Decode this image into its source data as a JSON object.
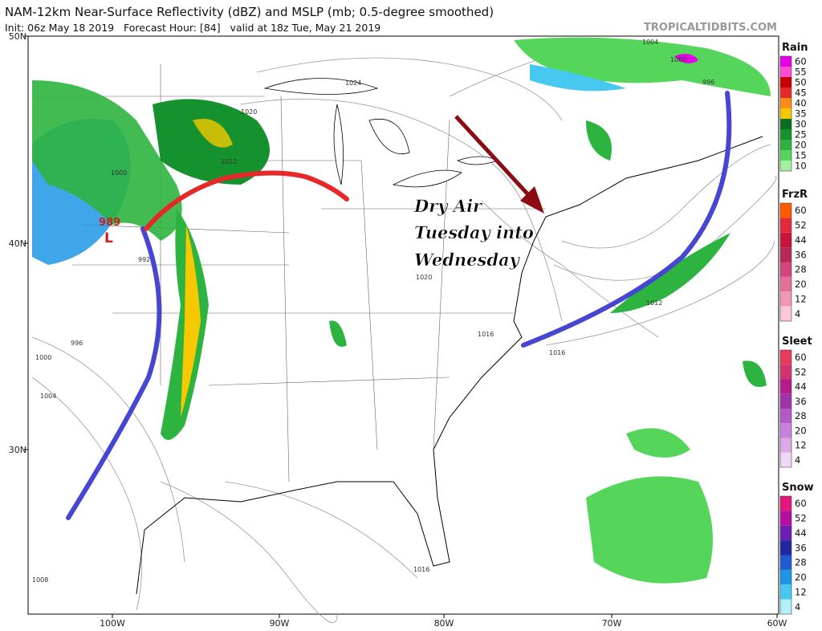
{
  "header": {
    "title": "NAM-12km Near-Surface Reflectivity (dBZ) and MSLP (mb; 0.5-degree smoothed)",
    "subtitle": "Init: 06z May 18 2019   Forecast Hour: [84]   valid at 18z Tue, May 21 2019",
    "watermark": "TROPICALTIDBITS.COM"
  },
  "axes": {
    "lat_labels": [
      "50N",
      "40N",
      "30N"
    ],
    "lon_labels": [
      "100W",
      "90W",
      "80W",
      "70W",
      "60W"
    ]
  },
  "legend": [
    {
      "title": "Rain",
      "items": [
        {
          "label": "60",
          "color": "#e600e6"
        },
        {
          "label": "55",
          "color": "#ff4dd2"
        },
        {
          "label": "50",
          "color": "#c80000"
        },
        {
          "label": "45",
          "color": "#e62828"
        },
        {
          "label": "40",
          "color": "#ff8c1a"
        },
        {
          "label": "35",
          "color": "#f5c800"
        },
        {
          "label": "30",
          "color": "#0a6e1e"
        },
        {
          "label": "25",
          "color": "#15912d"
        },
        {
          "label": "20",
          "color": "#2db440"
        },
        {
          "label": "15",
          "color": "#55d65a"
        },
        {
          "label": "10",
          "color": "#a5f0a0"
        }
      ]
    },
    {
      "title": "FrzR",
      "items": [
        {
          "label": "60",
          "color": "#ff5a00"
        },
        {
          "label": "52",
          "color": "#e6283c"
        },
        {
          "label": "44",
          "color": "#c8143c"
        },
        {
          "label": "36",
          "color": "#b4285a"
        },
        {
          "label": "28",
          "color": "#d2467d"
        },
        {
          "label": "20",
          "color": "#e66e9b"
        },
        {
          "label": "12",
          "color": "#f096b9"
        },
        {
          "label": "4",
          "color": "#fac8dc"
        }
      ]
    },
    {
      "title": "Sleet",
      "items": [
        {
          "label": "60",
          "color": "#e63c5a"
        },
        {
          "label": "52",
          "color": "#d2326e"
        },
        {
          "label": "44",
          "color": "#b41e8c"
        },
        {
          "label": "36",
          "color": "#a032aa"
        },
        {
          "label": "28",
          "color": "#b45ac8"
        },
        {
          "label": "20",
          "color": "#c882dc"
        },
        {
          "label": "12",
          "color": "#dcaae6"
        },
        {
          "label": "4",
          "color": "#f0d7f5"
        }
      ]
    },
    {
      "title": "Snow",
      "items": [
        {
          "label": "60",
          "color": "#e6147d"
        },
        {
          "label": "52",
          "color": "#b40fa0"
        },
        {
          "label": "44",
          "color": "#6e1eb4"
        },
        {
          "label": "36",
          "color": "#1e28a0"
        },
        {
          "label": "28",
          "color": "#1e5ad2"
        },
        {
          "label": "20",
          "color": "#1e96e6"
        },
        {
          "label": "12",
          "color": "#46c8f0"
        },
        {
          "label": "4",
          "color": "#b4f0fa"
        }
      ]
    }
  ],
  "annotation": [
    "Dry Air",
    "Tuesday into",
    "Wednesday"
  ],
  "pressure_labels": [
    "989",
    "L",
    "992",
    "996",
    "1000",
    "1004",
    "1008",
    "1012",
    "1016",
    "1016",
    "1020",
    "1020",
    "1024",
    "1004",
    "1000",
    "996",
    "1012",
    "1000",
    "1016"
  ]
}
